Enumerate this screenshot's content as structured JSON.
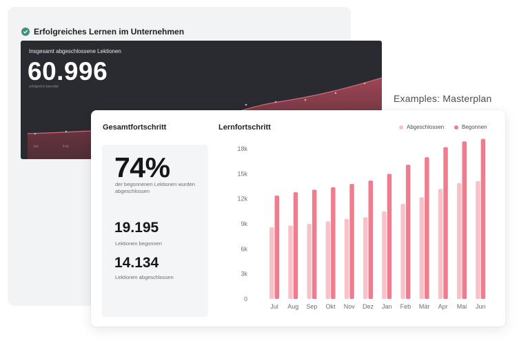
{
  "back_card": {
    "title": "Erfolgreiches Lernen im Unternehmen",
    "check_icon": "check-circle-icon",
    "accent": "#3f8f7a"
  },
  "dark_panel": {
    "caption": "Insgesamt abgeschlossene Lektionen",
    "value": "60.996",
    "sub": "erfolgreich beendet",
    "ticks": [
      "Jan",
      "Feb"
    ],
    "area_color": "#b24a5a"
  },
  "examples_label": "Examples: Masterplan",
  "gesamtfortschritt": {
    "title": "Gesamtfortschritt",
    "percent": "74%",
    "percent_desc": "der begonnenen Lektionen wurden abgeschlossen",
    "begonnen_value": "19.195",
    "begonnen_label": "Lektionen begonnen",
    "abgeschlossen_value": "14.134",
    "abgeschlossen_label": "Lektionen abgeschlossen"
  },
  "lernfortschritt": {
    "title": "Lernfortschritt",
    "legend": {
      "abgeschlossen": "Abgeschlossen",
      "begonnen": "Begonnen"
    }
  },
  "chart_data": {
    "type": "bar",
    "categories": [
      "Jul",
      "Aug",
      "Sep",
      "Okt",
      "Nov",
      "Dez",
      "Jan",
      "Feb",
      "Mär",
      "Apr",
      "Mai",
      "Jun"
    ],
    "y_ticks": [
      "0",
      "3k",
      "6k",
      "9k",
      "12k",
      "15k",
      "18k"
    ],
    "ylim": [
      0,
      19000
    ],
    "series": [
      {
        "name": "Abgeschlossen",
        "color": "#f7c3c9",
        "values": [
          8600,
          8800,
          9000,
          9300,
          9600,
          9800,
          10500,
          11400,
          12200,
          13200,
          13900,
          14134
        ]
      },
      {
        "name": "Begonnen",
        "color": "#f07d8e",
        "values": [
          12400,
          12800,
          13100,
          13400,
          13800,
          14200,
          15000,
          16100,
          17000,
          18200,
          18900,
          19195
        ]
      }
    ],
    "legend": "top-right",
    "grid": false
  }
}
